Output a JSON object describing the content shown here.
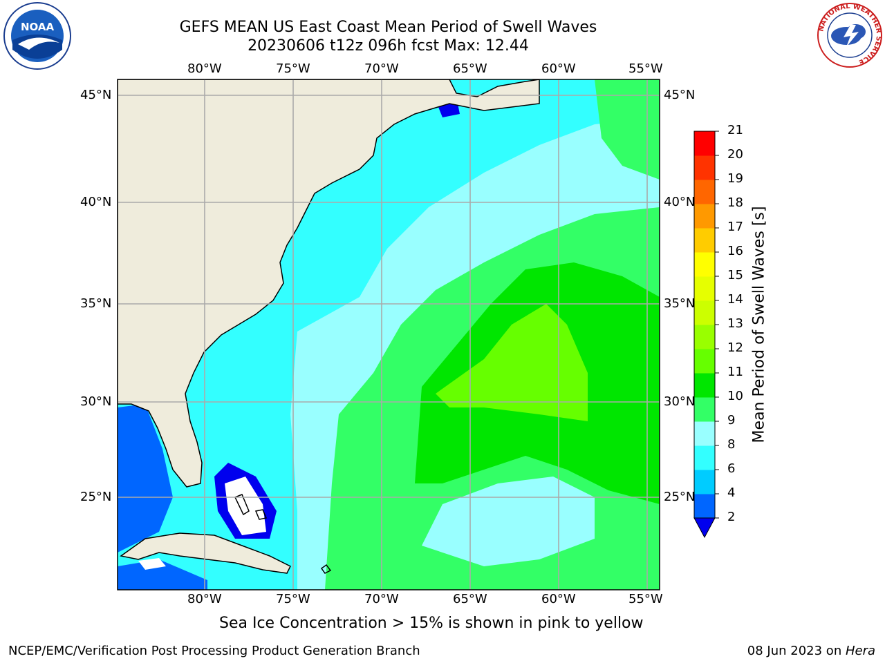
{
  "header": {
    "title_line1": "GEFS MEAN US East Coast Mean Period of Swell Waves",
    "title_line2": "20230606 t12z 096h fcst   Max: 12.44"
  },
  "logos": {
    "left": {
      "name": "noaa-logo",
      "text": "NOAA"
    },
    "right": {
      "name": "nws-logo",
      "ring_text": "NATIONAL WEATHER SERVICE"
    }
  },
  "map": {
    "lon_labels": [
      "80°W",
      "75°W",
      "70°W",
      "65°W",
      "60°W",
      "55°W"
    ],
    "lat_labels": [
      "45°N",
      "40°N",
      "35°N",
      "30°N",
      "25°N"
    ],
    "colors": {
      "land": "#efecdc",
      "gridline": "#aaaaaa",
      "coastline": "#000000",
      "no_data": "#ffffff"
    }
  },
  "colorbar": {
    "label": "Mean Period of Swell Waves [s]",
    "tick_labels": [
      "2",
      "4",
      "6",
      "8",
      "9",
      "10",
      "11",
      "12",
      "13",
      "14",
      "15",
      "16",
      "17",
      "18",
      "19",
      "20",
      "21"
    ],
    "band_colors": [
      "#0066ff",
      "#00ccff",
      "#33ffff",
      "#99ffff",
      "#33ff66",
      "#00e600",
      "#66ff00",
      "#99ff00",
      "#ccff00",
      "#e6ff00",
      "#ffff00",
      "#ffcc00",
      "#ff9900",
      "#ff6600",
      "#ff3300",
      "#ff0000"
    ],
    "under_color": "#0000ee"
  },
  "notes": {
    "sea_ice": "Sea Ice Concentration > 15% is shown in pink to yellow"
  },
  "footer": {
    "left": "NCEP/EMC/Verification Post Processing Product Generation Branch",
    "right_date": "08 Jun 2023 on ",
    "right_host": "Hera"
  }
}
